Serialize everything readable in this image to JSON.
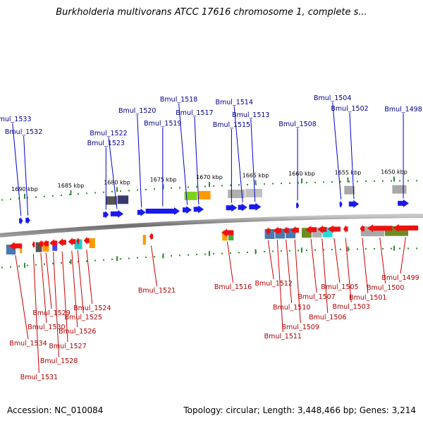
{
  "title": "Burkholderia multivorans ATCC 17616 chromosome 1, complete s...",
  "footer": {
    "accession": "Accession: NC_010084",
    "summary": "Topology: circular; Length: 3,448,466 bp; Genes: 3,214"
  },
  "scale": {
    "unit": "kbp",
    "ticks": [
      {
        "label": "1690 kbp",
        "value": 1690
      },
      {
        "label": "1685 kbp",
        "value": 1685
      },
      {
        "label": "1680 kbp",
        "value": 1680
      },
      {
        "label": "1675 kbp",
        "value": 1675
      },
      {
        "label": "1670 kbp",
        "value": 1670
      },
      {
        "label": "1665 kbp",
        "value": 1665
      },
      {
        "label": "1660 kbp",
        "value": 1660
      },
      {
        "label": "1655 kbp",
        "value": 1655
      },
      {
        "label": "1650 kbp",
        "value": 1650
      }
    ]
  },
  "colors": {
    "forward": "#1a1aee",
    "reverse": "#ee1111",
    "forward_label": "#00008b",
    "reverse_label": "#b00000",
    "backbone": "#8a8a8a",
    "tick": "#2e8b2e"
  },
  "genes_forward": [
    {
      "label": "Bmul_1533",
      "start": 1690.6,
      "end": 1690.2
    },
    {
      "label": "Bmul_1532",
      "start": 1689.9,
      "end": 1689.4
    },
    {
      "label": "Bmul_1523",
      "start": 1681.5,
      "end": 1680.9
    },
    {
      "label": "Bmul_1522",
      "start": 1680.7,
      "end": 1679.3
    },
    {
      "label": "Bmul_1520",
      "start": 1677.8,
      "end": 1676.9
    },
    {
      "label": "Bmul_1519",
      "start": 1676.9,
      "end": 1673.2
    },
    {
      "label": "Bmul_1518",
      "start": 1672.9,
      "end": 1671.9
    },
    {
      "label": "Bmul_1517",
      "start": 1671.7,
      "end": 1670.6
    },
    {
      "label": "Bmul_1515",
      "start": 1668.2,
      "end": 1667.0
    },
    {
      "label": "Bmul_1514",
      "start": 1666.9,
      "end": 1665.9
    },
    {
      "label": "Bmul_1513",
      "start": 1665.7,
      "end": 1664.4
    },
    {
      "label": "Bmul_1508",
      "start": 1660.6,
      "end": 1660.3
    },
    {
      "label": "Bmul_1504",
      "start": 1655.9,
      "end": 1655.6
    },
    {
      "label": "Bmul_1502",
      "start": 1654.9,
      "end": 1653.8
    },
    {
      "label": "Bmul_1498",
      "start": 1649.6,
      "end": 1648.4
    }
  ],
  "genes_reverse": [
    {
      "label": "Bmul_1534",
      "start": 1691.7,
      "end": 1690.3
    },
    {
      "label": "Bmul_1531",
      "start": 1689.2,
      "end": 1688.9
    },
    {
      "label": "Bmul_1530",
      "start": 1688.5,
      "end": 1688.0
    },
    {
      "label": "Bmul_1529",
      "start": 1688.0,
      "end": 1687.4
    },
    {
      "label": "Bmul_1528",
      "start": 1687.3,
      "end": 1686.5
    },
    {
      "label": "Bmul_1527",
      "start": 1686.4,
      "end": 1685.5
    },
    {
      "label": "Bmul_1526",
      "start": 1685.3,
      "end": 1684.5
    },
    {
      "label": "Bmul_1525",
      "start": 1684.4,
      "end": 1684.1
    },
    {
      "label": "Bmul_1524",
      "start": 1683.6,
      "end": 1683.0
    },
    {
      "label": "Bmul_1521",
      "start": 1676.5,
      "end": 1676.1
    },
    {
      "label": "Bmul_1516",
      "start": 1668.7,
      "end": 1667.4
    },
    {
      "label": "Bmul_1512",
      "start": 1663.9,
      "end": 1663.4
    },
    {
      "label": "Bmul_1511",
      "start": 1663.1,
      "end": 1662.2
    },
    {
      "label": "Bmul_1510",
      "start": 1662.0,
      "end": 1661.4
    },
    {
      "label": "Bmul_1509",
      "start": 1661.2,
      "end": 1660.3
    },
    {
      "label": "Bmul_1507",
      "start": 1659.6,
      "end": 1658.4
    },
    {
      "label": "Bmul_1506",
      "start": 1658.3,
      "end": 1657.3
    },
    {
      "label": "Bmul_1505",
      "start": 1657.2,
      "end": 1655.8
    },
    {
      "label": "Bmul_1503",
      "start": 1655.5,
      "end": 1655.0
    },
    {
      "label": "Bmul_1501",
      "start": 1653.7,
      "end": 1653.2
    },
    {
      "label": "Bmul_1500",
      "start": 1652.9,
      "end": 1650.2
    },
    {
      "label": "Bmul_1499",
      "start": 1650.1,
      "end": 1647.4
    }
  ]
}
